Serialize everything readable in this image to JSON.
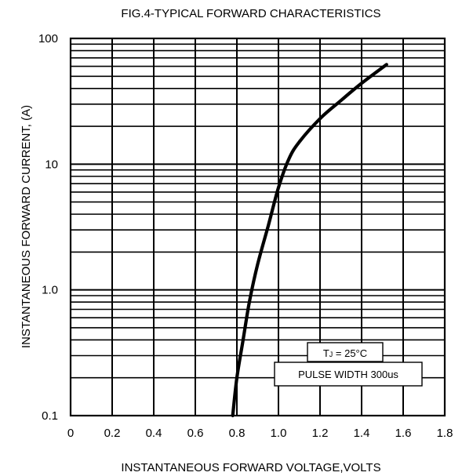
{
  "chart_data": {
    "type": "line",
    "title": "FIG.4-TYPICAL FORWARD CHARACTERISTICS",
    "xlabel": "INSTANTANEOUS FORWARD VOLTAGE,VOLTS",
    "ylabel": "INSTANTANEOUS FORWARD CURRENT, (A)",
    "xlim": [
      0,
      1.8
    ],
    "ylim": [
      0.1,
      100
    ],
    "yscale": "log",
    "grid": true,
    "x_ticks": [
      "0",
      "0.2",
      "0.4",
      "0.6",
      "0.8",
      "1.0",
      "1.2",
      "1.4",
      "1.6",
      "1.8"
    ],
    "y_ticks": [
      {
        "value": 0.1,
        "label": "0.1"
      },
      {
        "value": 1,
        "label": "1.0"
      },
      {
        "value": 10,
        "label": "10"
      },
      {
        "value": 100,
        "label": "100"
      }
    ],
    "annotations": {
      "temp_prefix": "T",
      "temp_sub": "J",
      "temp_rest": " = 25°C",
      "pulse": "PULSE WIDTH 300us"
    },
    "series": [
      {
        "x": [
          0.78,
          0.8,
          0.83,
          0.86,
          0.9,
          0.95,
          1.0,
          1.05,
          1.1,
          1.2,
          1.3,
          1.4,
          1.52
        ],
        "y": [
          0.1,
          0.2,
          0.4,
          0.8,
          1.6,
          3.2,
          6.5,
          11,
          15,
          23,
          32,
          44,
          62
        ]
      }
    ]
  }
}
